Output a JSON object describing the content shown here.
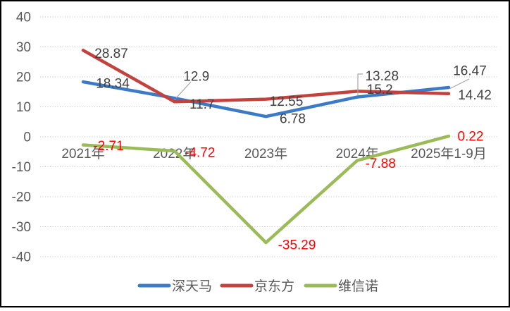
{
  "chart_data": {
    "type": "line",
    "title": "",
    "categories": [
      "2021年",
      "2022年",
      "2023年",
      "2024年",
      "2025年1-9月"
    ],
    "series": [
      {
        "name": "深天马",
        "color": "#3C7AC6",
        "label_color": "#404040",
        "values": [
          18.34,
          12.9,
          6.78,
          13.28,
          16.47
        ]
      },
      {
        "name": "京东方",
        "color": "#C3423D",
        "label_color": "#404040",
        "values": [
          28.87,
          11.7,
          12.55,
          15.2,
          14.42
        ]
      },
      {
        "name": "维信诺",
        "color": "#9BBB59",
        "label_color": "#FF0000",
        "values": [
          -2.71,
          -4.72,
          -35.29,
          -7.88,
          0.22
        ]
      }
    ],
    "ylim": [
      -40,
      40
    ],
    "ytick_step": 10,
    "yticks": [
      40,
      30,
      20,
      10,
      0,
      -10,
      -20,
      -30,
      -40
    ],
    "grid": "horizontal-dotted",
    "gridline_color": "#BFBFBF",
    "axis_text_color": "#595959",
    "data_label_leader_color": "#A6A6A6",
    "legend_position": "bottom",
    "legend_text_color": "#595959",
    "background_color": "#FFFFFF",
    "frame_border_color": "#000000"
  }
}
